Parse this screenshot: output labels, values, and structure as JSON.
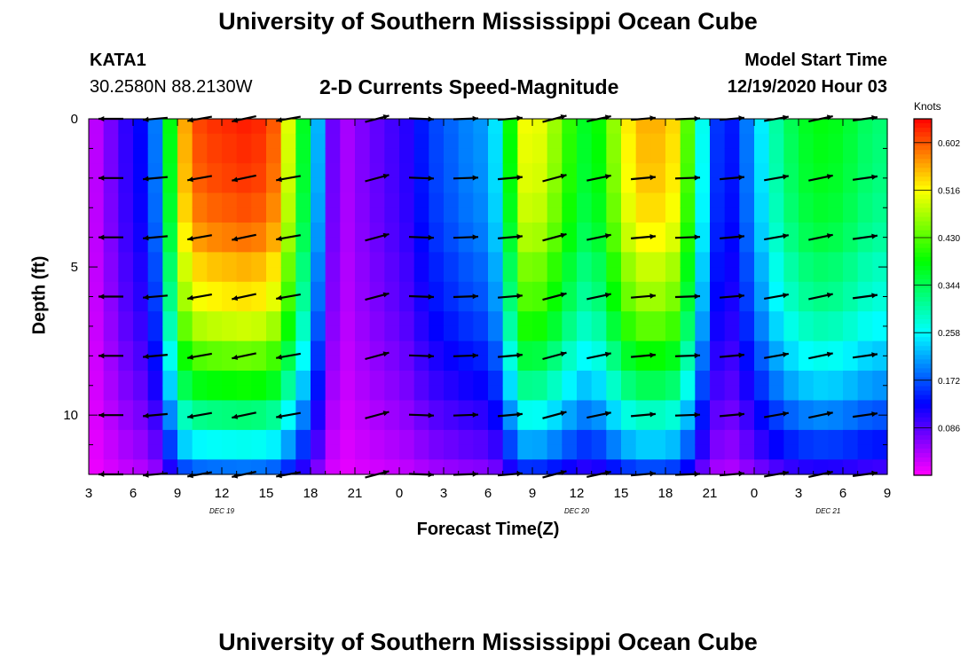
{
  "header": {
    "main_title": "University of Southern Mississippi Ocean Cube",
    "station_id": "KATA1",
    "station_coords": "30.2580N 88.2130W",
    "subtitle": "2-D Currents Speed-Magnitude",
    "model_start_label": "Model Start Time",
    "model_start_value": "12/19/2020 Hour 03"
  },
  "footer": {
    "title": "University of Southern Mississippi Ocean Cube"
  },
  "chart_data": {
    "type": "heatmap",
    "title": "2-D Currents Speed-Magnitude",
    "xlabel": "Forecast Time(Z)",
    "ylabel": "Depth (ft)",
    "x_hours": [
      3,
      4,
      5,
      6,
      7,
      8,
      9,
      10,
      11,
      12,
      13,
      14,
      15,
      16,
      17,
      18,
      19,
      20,
      21,
      22,
      23,
      24,
      25,
      26,
      27,
      28,
      29,
      30,
      31,
      32,
      33,
      34,
      35,
      36,
      37,
      38,
      39,
      40,
      41,
      42,
      43,
      44,
      45,
      46,
      47,
      48,
      49,
      50,
      51,
      52,
      53,
      54,
      55,
      56
    ],
    "xlim": [
      3,
      57
    ],
    "ylim": [
      0,
      12
    ],
    "depth_levels": [
      0,
      2,
      4,
      6,
      8,
      10,
      12
    ],
    "x_tick_labels": [
      "3",
      "6",
      "9",
      "12",
      "15",
      "18",
      "21",
      "0",
      "3",
      "6",
      "9",
      "12",
      "15",
      "18",
      "21",
      "0",
      "3",
      "6",
      "9"
    ],
    "y_tick_labels": [
      "0",
      "5",
      "10"
    ],
    "day_labels": [
      "DEC 19",
      "DEC 20",
      "DEC 21"
    ],
    "colorbar": {
      "units": "Knots",
      "range": [
        0,
        0.645
      ],
      "tick_labels": [
        "0.602",
        "0.516",
        "0.430",
        "0.344",
        "0.258",
        "0.172",
        "0.086"
      ]
    },
    "speed_profile_knots": [
      0.02,
      0.05,
      0.09,
      0.12,
      0.14,
      0.24,
      0.52,
      0.6,
      0.62,
      0.62,
      0.63,
      0.63,
      0.62,
      0.58,
      0.42,
      0.32,
      0.12,
      0.03,
      0.06,
      0.07,
      0.09,
      0.1,
      0.12,
      0.16,
      0.17,
      0.19,
      0.2,
      0.21,
      0.28,
      0.5,
      0.52,
      0.49,
      0.44,
      0.38,
      0.36,
      0.42,
      0.5,
      0.55,
      0.56,
      0.55,
      0.52,
      0.34,
      0.19,
      0.12,
      0.16,
      0.22,
      0.28,
      0.33,
      0.36,
      0.38,
      0.38,
      0.37,
      0.35,
      0.33
    ],
    "depth_factor": [
      1.0,
      0.99,
      0.98,
      0.96,
      0.93,
      0.88,
      0.84,
      0.78,
      0.7,
      0.62,
      0.52,
      0.42,
      0.3
    ],
    "arrow_times": [
      4.5,
      7.5,
      10.5,
      13.5,
      16.5,
      22.5,
      25.5,
      28.5,
      31.5,
      34.5,
      37.5,
      40.5,
      43.5,
      46.5,
      49.5,
      52.5,
      55.5
    ],
    "arrow_bearings_deg": [
      180,
      185,
      190,
      192,
      190,
      15,
      358,
      2,
      5,
      15,
      12,
      5,
      2,
      5,
      10,
      12,
      8
    ]
  }
}
